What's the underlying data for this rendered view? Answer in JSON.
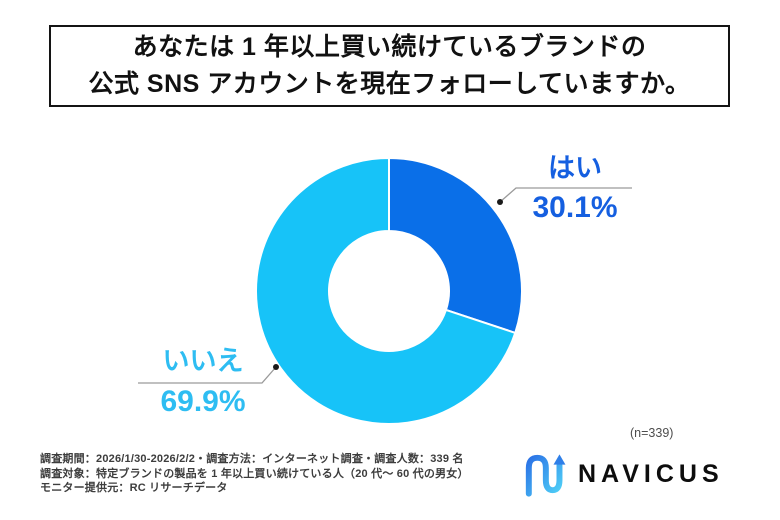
{
  "title": {
    "line1": "あなたは 1 年以上買い続けているブランドの",
    "line2": "公式 SNS アカウントを現在フォローしていますか。"
  },
  "chart_data": {
    "type": "pie",
    "donut": true,
    "title": "あなたは1年以上買い続けているブランドの公式SNSアカウントを現在フォローしていますか。",
    "categories": [
      "はい",
      "いいえ"
    ],
    "values": [
      30.1,
      69.9
    ],
    "unit": "%",
    "sample_size": 339,
    "start_angle_deg": 0,
    "direction": "clockwise",
    "legend_position": "callout-labels",
    "segments": [
      {
        "label": "はい",
        "value": 30.1,
        "display": "30.1%",
        "color": "#0a6fe8",
        "label_color": "#155fe0"
      },
      {
        "label": "いいえ",
        "value": 69.9,
        "display": "69.9%",
        "color": "#17c3f8",
        "label_color": "#2ebdf2"
      }
    ]
  },
  "note": "(n=339)",
  "footer": {
    "line1": "調査期間：2026/1/30-2026/2/2・調査方法：インターネット調査・調査人数：339 名",
    "line2": "調査対象：特定ブランドの製品を 1 年以上買い続けている人（20 代～ 60 代の男女）",
    "line3": "モニター提供元：RC リサーチデータ"
  },
  "logo": {
    "text": "NAVICUS"
  }
}
